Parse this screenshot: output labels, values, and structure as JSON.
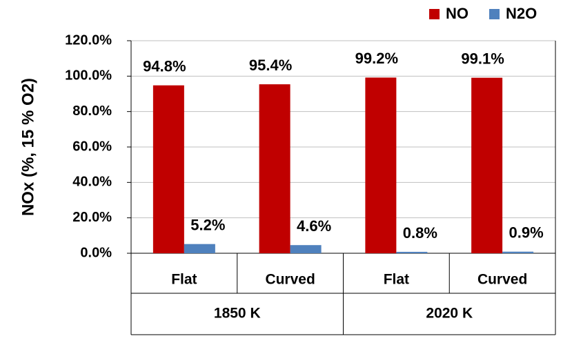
{
  "chart_data": {
    "type": "bar",
    "y_label": "NOx (%, 15 % O2)",
    "categories": [
      "Flat",
      "Curved",
      "Flat",
      "Curved"
    ],
    "groups": [
      "1850 K",
      "2020 K"
    ],
    "series": [
      {
        "name": "NO",
        "color": "#c00000",
        "values": [
          94.8,
          95.4,
          99.2,
          99.1
        ],
        "value_labels": [
          "94.8%",
          "95.4%",
          "99.2%",
          "99.1%"
        ]
      },
      {
        "name": "N2O",
        "color": "#4f81bd",
        "values": [
          5.2,
          4.6,
          0.8,
          0.9
        ],
        "value_labels": [
          "5.2%",
          "4.6%",
          "0.8%",
          "0.9%"
        ]
      }
    ],
    "ylim": [
      0,
      120
    ],
    "yticks": [
      {
        "value": 0,
        "label": "0.0%"
      },
      {
        "value": 20,
        "label": "20.0%"
      },
      {
        "value": 40,
        "label": "40.0%"
      },
      {
        "value": 60,
        "label": "60.0%"
      },
      {
        "value": 80,
        "label": "80.0%"
      },
      {
        "value": 100,
        "label": "100.0%"
      },
      {
        "value": 120,
        "label": "120.0%"
      }
    ],
    "grid": true,
    "legend": "top-right"
  }
}
